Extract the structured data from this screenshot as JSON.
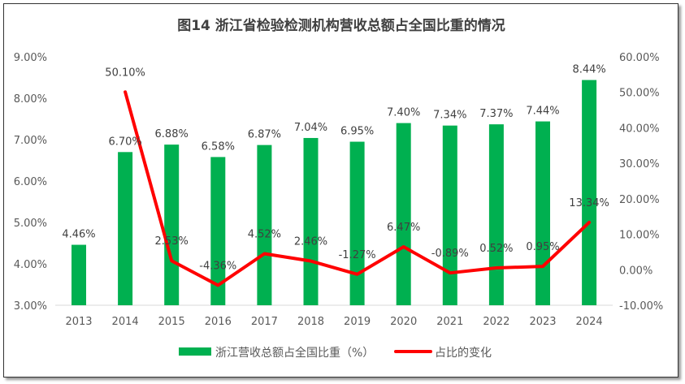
{
  "chart_data": {
    "type": "bar+line",
    "title": "图14  浙江省检验检测机构营收总额占全国比重的情况",
    "categories": [
      "2013",
      "2014",
      "2015",
      "2016",
      "2017",
      "2018",
      "2019",
      "2020",
      "2021",
      "2022",
      "2023",
      "2024"
    ],
    "series": [
      {
        "name": "浙江营收总额占全国比重（%）",
        "type": "bar",
        "axis": "left",
        "color": "#00B050",
        "values": [
          4.46,
          6.7,
          6.88,
          6.58,
          6.87,
          7.04,
          6.95,
          7.4,
          7.34,
          7.37,
          7.44,
          8.44
        ],
        "labels": [
          "4.46%",
          "6.70%",
          "6.88%",
          "6.58%",
          "6.87%",
          "7.04%",
          "6.95%",
          "7.40%",
          "7.34%",
          "7.37%",
          "7.44%",
          "8.44%"
        ]
      },
      {
        "name": "占比的变化",
        "type": "line",
        "axis": "right",
        "color": "#FF0000",
        "values": [
          null,
          50.1,
          2.53,
          -4.36,
          4.52,
          2.46,
          -1.27,
          6.47,
          -0.89,
          0.52,
          0.95,
          13.34
        ],
        "labels": [
          "",
          "50.10%",
          "2.53%",
          "-4.36%",
          "4.52%",
          "2.46%",
          "-1.27%",
          "6.47%",
          "-0.89%",
          "0.52%",
          "0.95%",
          "13.34%"
        ]
      }
    ],
    "y_left": {
      "lim": [
        3,
        9
      ],
      "ticks": [
        "3.00%",
        "4.00%",
        "5.00%",
        "6.00%",
        "7.00%",
        "8.00%",
        "9.00%"
      ]
    },
    "y_right": {
      "lim": [
        -10,
        60
      ],
      "ticks": [
        "-10.00%",
        "0.00%",
        "10.00%",
        "20.00%",
        "30.00%",
        "40.00%",
        "50.00%",
        "60.00%"
      ]
    },
    "grid": false,
    "legend": "bottom"
  }
}
